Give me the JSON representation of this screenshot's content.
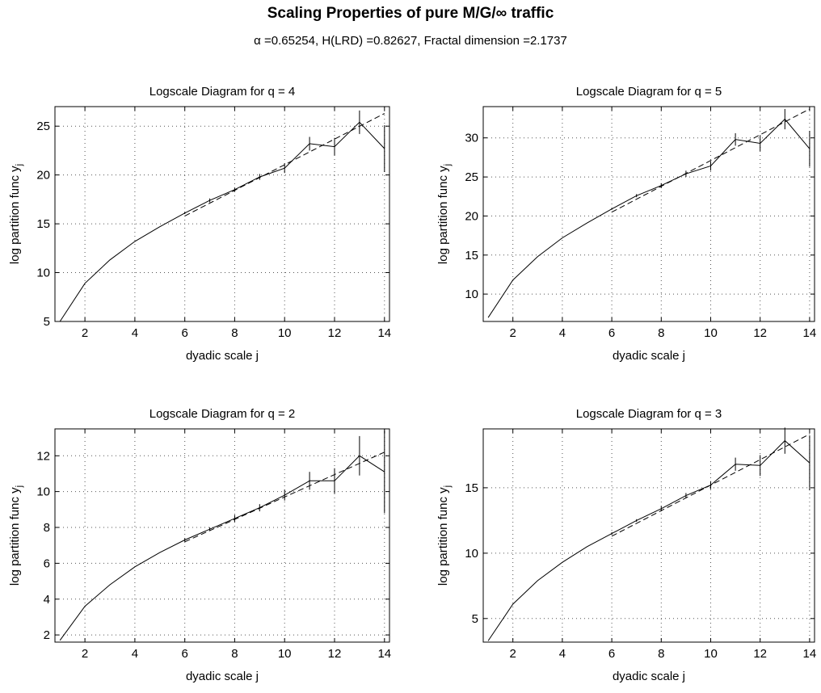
{
  "figure": {
    "title": "Scaling Properties of pure M/G/∞ traffic",
    "subtitle": "α =0.65254,  H(LRD) =0.82627,  Fractal dimension =2.1737"
  },
  "chart_data": [
    {
      "type": "line",
      "title": "Logscale Diagram for q = 4",
      "xlabel": "dyadic scale j",
      "ylabel": "log partition func y",
      "ylabel_subscript": "j",
      "xlim": [
        0.8,
        14.2
      ],
      "ylim": [
        5,
        27
      ],
      "xticks": [
        2,
        4,
        6,
        8,
        10,
        12,
        14
      ],
      "yticks": [
        5,
        10,
        15,
        20,
        25
      ],
      "grid": true,
      "series": [
        {
          "role": "data",
          "style": "solid",
          "x": [
            1,
            2,
            3,
            4,
            5,
            6,
            7,
            8,
            9,
            10,
            11,
            12,
            13,
            14
          ],
          "y": [
            5.0,
            8.9,
            11.3,
            13.2,
            14.7,
            16.1,
            17.4,
            18.5,
            19.8,
            20.7,
            23.2,
            22.9,
            25.4,
            22.7
          ],
          "error": [
            0,
            0,
            0,
            0,
            0,
            0.1,
            0.2,
            0.2,
            0.3,
            0.5,
            0.7,
            0.9,
            1.2,
            2.4
          ]
        },
        {
          "role": "fit",
          "style": "dashed",
          "x": [
            6,
            14
          ],
          "y": [
            15.8,
            26.3
          ]
        }
      ]
    },
    {
      "type": "line",
      "title": "Logscale Diagram for q = 5",
      "xlabel": "dyadic scale j",
      "ylabel": "log partition func y",
      "ylabel_subscript": "j",
      "xlim": [
        0.8,
        14.2
      ],
      "ylim": [
        6.5,
        34
      ],
      "xticks": [
        2,
        4,
        6,
        8,
        10,
        12,
        14
      ],
      "yticks": [
        10,
        15,
        20,
        25,
        30
      ],
      "grid": true,
      "series": [
        {
          "role": "data",
          "style": "solid",
          "x": [
            1,
            2,
            3,
            4,
            5,
            6,
            7,
            8,
            9,
            10,
            11,
            12,
            13,
            14
          ],
          "y": [
            7.0,
            11.8,
            14.8,
            17.2,
            19.1,
            20.9,
            22.6,
            23.9,
            25.4,
            26.4,
            29.8,
            29.3,
            32.4,
            28.6
          ],
          "error": [
            0,
            0,
            0,
            0,
            0,
            0.1,
            0.2,
            0.3,
            0.4,
            0.6,
            0.8,
            1.0,
            1.3,
            2.3
          ]
        },
        {
          "role": "fit",
          "style": "dashed",
          "x": [
            6,
            14
          ],
          "y": [
            20.5,
            33.7
          ]
        }
      ]
    },
    {
      "type": "line",
      "title": "Logscale Diagram for q = 2",
      "xlabel": "dyadic scale j",
      "ylabel": "log partition func y",
      "ylabel_subscript": "j",
      "xlim": [
        0.8,
        14.2
      ],
      "ylim": [
        1.6,
        13.5
      ],
      "xticks": [
        2,
        4,
        6,
        8,
        10,
        12,
        14
      ],
      "yticks": [
        2,
        4,
        6,
        8,
        10,
        12
      ],
      "grid": true,
      "series": [
        {
          "role": "data",
          "style": "solid",
          "x": [
            1,
            2,
            3,
            4,
            5,
            6,
            7,
            8,
            9,
            10,
            11,
            12,
            13,
            14
          ],
          "y": [
            1.7,
            3.6,
            4.8,
            5.8,
            6.6,
            7.3,
            7.9,
            8.5,
            9.1,
            9.8,
            10.6,
            10.6,
            12.0,
            11.1
          ],
          "error": [
            0,
            0,
            0,
            0,
            0,
            0.1,
            0.1,
            0.2,
            0.2,
            0.3,
            0.5,
            0.7,
            1.1,
            2.3
          ]
        },
        {
          "role": "fit",
          "style": "dashed",
          "x": [
            6,
            14
          ],
          "y": [
            7.2,
            12.2
          ]
        }
      ]
    },
    {
      "type": "line",
      "title": "Logscale Diagram for q = 3",
      "xlabel": "dyadic scale j",
      "ylabel": "log partition func y",
      "ylabel_subscript": "j",
      "xlim": [
        0.8,
        14.2
      ],
      "ylim": [
        3.2,
        19.5
      ],
      "xticks": [
        2,
        4,
        6,
        8,
        10,
        12,
        14
      ],
      "yticks": [
        5,
        10,
        15
      ],
      "grid": true,
      "series": [
        {
          "role": "data",
          "style": "solid",
          "x": [
            1,
            2,
            3,
            4,
            5,
            6,
            7,
            8,
            9,
            10,
            11,
            12,
            13,
            14
          ],
          "y": [
            3.3,
            6.1,
            7.9,
            9.3,
            10.5,
            11.5,
            12.5,
            13.4,
            14.4,
            15.2,
            16.8,
            16.7,
            18.6,
            16.9
          ],
          "error": [
            0,
            0,
            0,
            0,
            0,
            0.1,
            0.1,
            0.2,
            0.2,
            0.3,
            0.5,
            0.8,
            1.0,
            2.1
          ]
        },
        {
          "role": "fit",
          "style": "dashed",
          "x": [
            6,
            14
          ],
          "y": [
            11.3,
            19.1
          ]
        }
      ]
    }
  ]
}
